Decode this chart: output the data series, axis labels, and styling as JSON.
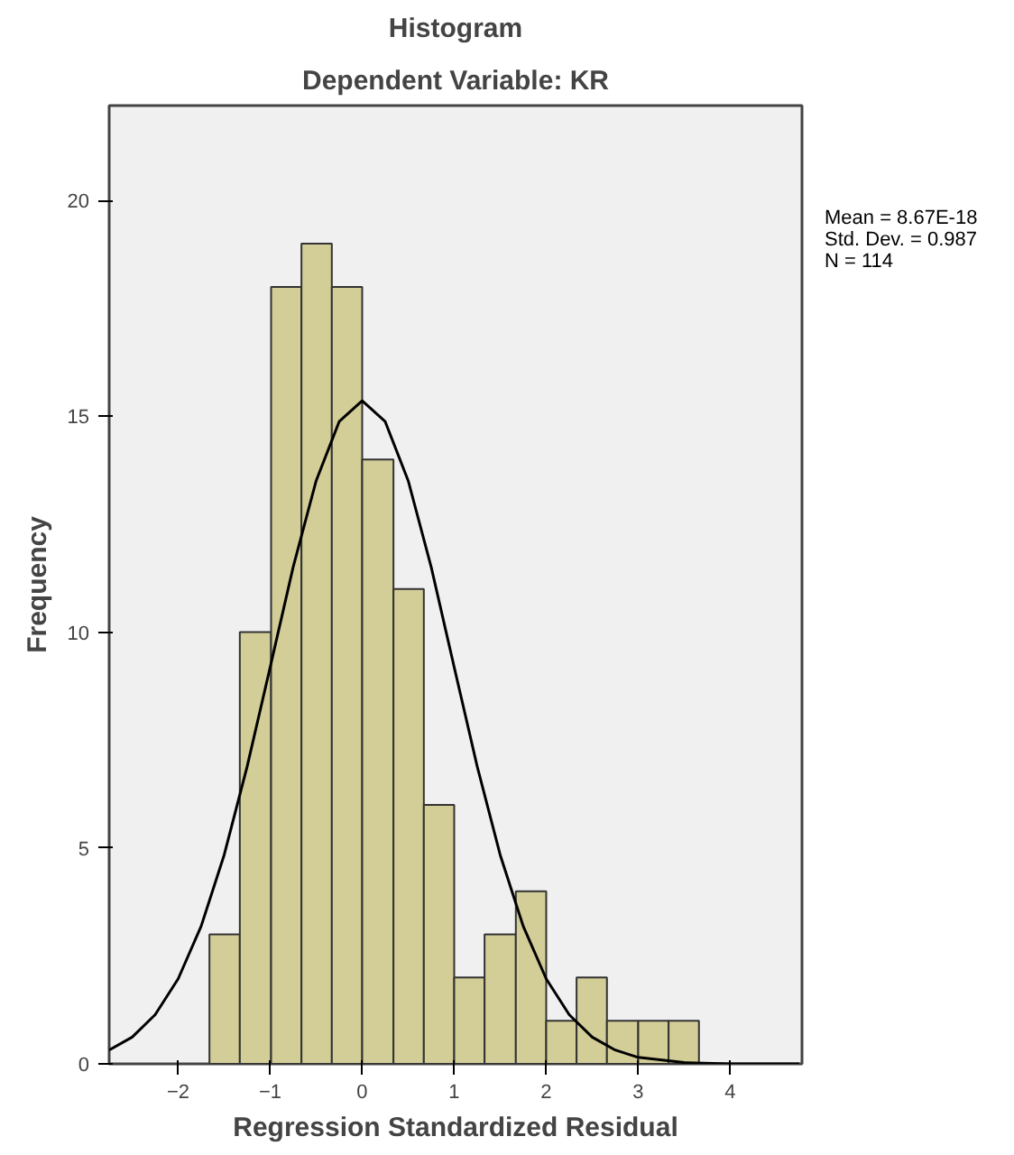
{
  "chart_data": {
    "type": "histogram",
    "title": "Histogram",
    "subtitle": "Dependent Variable: KR",
    "xlabel": "Regression Standardized Residual",
    "ylabel": "Frequency",
    "bins": [
      -1.66,
      -1.33,
      -0.99,
      -0.66,
      -0.33,
      0.0,
      0.34,
      0.67,
      1.0,
      1.33,
      1.67,
      2.0,
      2.33,
      2.66,
      3.0,
      3.33,
      3.66
    ],
    "values": [
      3,
      10,
      18,
      19,
      18,
      14,
      11,
      6,
      2,
      3,
      4,
      1,
      2,
      1,
      1,
      1
    ],
    "color": "#d3ce97",
    "series": [
      {
        "type": "line",
        "color": "#000000",
        "x": [
          -2.75,
          -2.5,
          -2.25,
          -2.0,
          -1.75,
          -1.5,
          -1.25,
          -1.0,
          -0.75,
          -0.5,
          -0.25,
          0.0,
          0.25,
          0.5,
          0.75,
          1.0,
          1.25,
          1.5,
          1.75,
          2.0,
          2.25,
          2.5,
          2.75,
          3.0,
          3.5,
          4.0,
          4.75
        ],
        "values": [
          0.32,
          0.62,
          1.14,
          1.97,
          3.19,
          4.84,
          6.89,
          9.19,
          11.51,
          13.51,
          14.88,
          15.36,
          14.88,
          13.51,
          11.51,
          9.19,
          6.89,
          4.84,
          3.19,
          1.97,
          1.14,
          0.62,
          0.32,
          0.15,
          0.03,
          0.0,
          0.0
        ]
      }
    ],
    "xlim": [
      -2.75,
      4.78
    ],
    "ylim": [
      0,
      22.2
    ],
    "xticks": [
      -2,
      -1,
      0,
      1,
      2,
      3,
      4
    ],
    "yticks": [
      0,
      5,
      10,
      15,
      20
    ],
    "annotations": [
      "Mean = 8.67E-18",
      "Std. Dev. = 0.987",
      "N = 114"
    ],
    "grid": false
  }
}
